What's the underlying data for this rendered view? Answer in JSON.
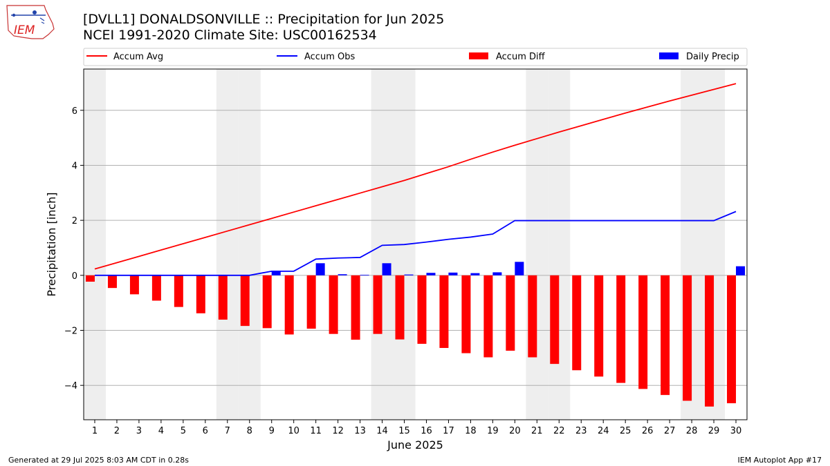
{
  "header": {
    "title": "[DVLL1] DONALDSONVILLE :: Precipitation for Jun 2025",
    "subtitle": "NCEI 1991-2020 Climate Site: USC00162534",
    "logo_text": "IEM"
  },
  "footer": {
    "left": "Generated at 29 Jul 2025 8:03 AM CDT in 0.28s",
    "right": "IEM Autoplot App #17"
  },
  "colors": {
    "accum_avg": "#ff0000",
    "accum_obs": "#0000ff",
    "accum_diff": "#ff0000",
    "daily_precip": "#0000ff",
    "weekend_shade": "#eeeeee",
    "grid": "#b0b0b0"
  },
  "chart_data": {
    "type": "bar",
    "xlabel": "June 2025",
    "ylabel": "Precipitation [inch]",
    "ylim": [
      -5.25,
      7.5
    ],
    "yticks": [
      -4,
      -2,
      0,
      2,
      4,
      6
    ],
    "ytick_labels": [
      "−4",
      "−2",
      "0",
      "2",
      "4",
      "6"
    ],
    "grid": "horizontal",
    "legend_position": "top",
    "days": [
      1,
      2,
      3,
      4,
      5,
      6,
      7,
      8,
      9,
      10,
      11,
      12,
      13,
      14,
      15,
      16,
      17,
      18,
      19,
      20,
      21,
      22,
      23,
      24,
      25,
      26,
      27,
      28,
      29,
      30
    ],
    "weekend_days": [
      1,
      7,
      8,
      14,
      15,
      21,
      22,
      28,
      29
    ],
    "series": [
      {
        "name": "Accum Avg",
        "kind": "line",
        "values": [
          0.23,
          0.46,
          0.69,
          0.92,
          1.15,
          1.38,
          1.61,
          1.84,
          2.07,
          2.3,
          2.53,
          2.76,
          2.99,
          3.22,
          3.45,
          3.7,
          3.95,
          4.22,
          4.48,
          4.73,
          4.97,
          5.21,
          5.44,
          5.67,
          5.9,
          6.12,
          6.34,
          6.55,
          6.76,
          6.97
        ]
      },
      {
        "name": "Accum Obs",
        "kind": "line",
        "values": [
          0,
          0,
          0,
          0,
          0,
          0,
          0,
          0,
          0.15,
          0.15,
          0.59,
          0.63,
          0.65,
          1.09,
          1.12,
          1.21,
          1.31,
          1.39,
          1.5,
          1.99,
          1.99,
          1.99,
          1.99,
          1.99,
          1.99,
          1.99,
          1.99,
          1.99,
          1.99,
          2.32
        ]
      },
      {
        "name": "Accum Diff",
        "kind": "bar",
        "values": [
          -0.23,
          -0.46,
          -0.69,
          -0.92,
          -1.15,
          -1.38,
          -1.61,
          -1.84,
          -1.92,
          -2.15,
          -1.94,
          -2.13,
          -2.34,
          -2.13,
          -2.33,
          -2.49,
          -2.64,
          -2.83,
          -2.98,
          -2.74,
          -2.98,
          -3.22,
          -3.45,
          -3.68,
          -3.91,
          -4.13,
          -4.35,
          -4.56,
          -4.77,
          -4.65
        ]
      },
      {
        "name": "Daily Precip",
        "kind": "bar",
        "values": [
          0,
          0,
          0,
          0,
          0,
          0,
          0,
          0,
          0.15,
          0,
          0.44,
          0.04,
          0.02,
          0.44,
          0.03,
          0.09,
          0.1,
          0.08,
          0.11,
          0.49,
          0,
          0,
          0,
          0,
          0,
          0,
          0,
          0,
          0,
          0.33
        ]
      }
    ]
  }
}
